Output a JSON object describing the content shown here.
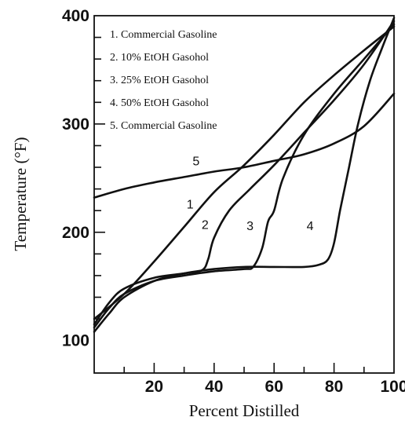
{
  "chart_data": {
    "type": "line",
    "xlabel": "Percent Distilled",
    "ylabel": "Temperature (°F)",
    "xlim": [
      0,
      100
    ],
    "ylim": [
      70,
      400
    ],
    "x_ticks": [
      20,
      40,
      60,
      80,
      100
    ],
    "y_ticks": [
      100,
      200,
      300,
      400
    ],
    "x_tick_labels": [
      "20",
      "40",
      "60",
      "80",
      "100"
    ],
    "y_tick_labels": [
      "100",
      "200",
      "300",
      "400"
    ],
    "grid": false,
    "legend_position": "top-left",
    "legend": [
      "1. Commercial Gasoline",
      "2. 10% EtOH Gasohol",
      "3. 25% EtOH Gasohol",
      "4. 50% EtOH Gasohol",
      "5. Commercial Gasoline"
    ],
    "series": [
      {
        "label": "1",
        "points": [
          [
            0,
            120
          ],
          [
            10,
            143
          ],
          [
            20,
            173
          ],
          [
            30,
            205
          ],
          [
            40,
            237
          ],
          [
            50,
            262
          ],
          [
            60,
            290
          ],
          [
            70,
            320
          ],
          [
            80,
            345
          ],
          [
            90,
            368
          ],
          [
            100,
            390
          ]
        ]
      },
      {
        "label": "2",
        "points": [
          [
            0,
            115
          ],
          [
            5,
            135
          ],
          [
            10,
            148
          ],
          [
            20,
            158
          ],
          [
            30,
            162
          ],
          [
            36,
            165
          ],
          [
            38,
            175
          ],
          [
            40,
            195
          ],
          [
            45,
            220
          ],
          [
            52,
            240
          ],
          [
            60,
            262
          ],
          [
            70,
            292
          ],
          [
            80,
            322
          ],
          [
            90,
            355
          ],
          [
            100,
            395
          ]
        ]
      },
      {
        "label": "3",
        "points": [
          [
            0,
            112
          ],
          [
            5,
            130
          ],
          [
            10,
            143
          ],
          [
            20,
            155
          ],
          [
            30,
            160
          ],
          [
            40,
            164
          ],
          [
            50,
            166
          ],
          [
            53,
            168
          ],
          [
            56,
            185
          ],
          [
            58,
            210
          ],
          [
            60,
            220
          ],
          [
            63,
            250
          ],
          [
            70,
            290
          ],
          [
            80,
            328
          ],
          [
            90,
            360
          ],
          [
            100,
            392
          ]
        ]
      },
      {
        "label": "4",
        "points": [
          [
            0,
            108
          ],
          [
            5,
            125
          ],
          [
            10,
            140
          ],
          [
            20,
            155
          ],
          [
            30,
            162
          ],
          [
            40,
            166
          ],
          [
            50,
            168
          ],
          [
            60,
            168
          ],
          [
            70,
            168
          ],
          [
            75,
            170
          ],
          [
            78,
            175
          ],
          [
            80,
            190
          ],
          [
            82,
            220
          ],
          [
            85,
            260
          ],
          [
            88,
            300
          ],
          [
            92,
            340
          ],
          [
            96,
            370
          ],
          [
            100,
            398
          ]
        ]
      },
      {
        "label": "5",
        "points": [
          [
            0,
            232
          ],
          [
            10,
            240
          ],
          [
            20,
            246
          ],
          [
            30,
            251
          ],
          [
            40,
            256
          ],
          [
            50,
            260
          ],
          [
            60,
            266
          ],
          [
            70,
            272
          ],
          [
            80,
            282
          ],
          [
            90,
            298
          ],
          [
            100,
            328
          ]
        ]
      }
    ],
    "curve_labels": [
      {
        "text": "1",
        "x": 32,
        "y": 222
      },
      {
        "text": "2",
        "x": 37,
        "y": 203
      },
      {
        "text": "3",
        "x": 52,
        "y": 202
      },
      {
        "text": "4",
        "x": 72,
        "y": 202
      },
      {
        "text": "5",
        "x": 34,
        "y": 262
      }
    ]
  }
}
